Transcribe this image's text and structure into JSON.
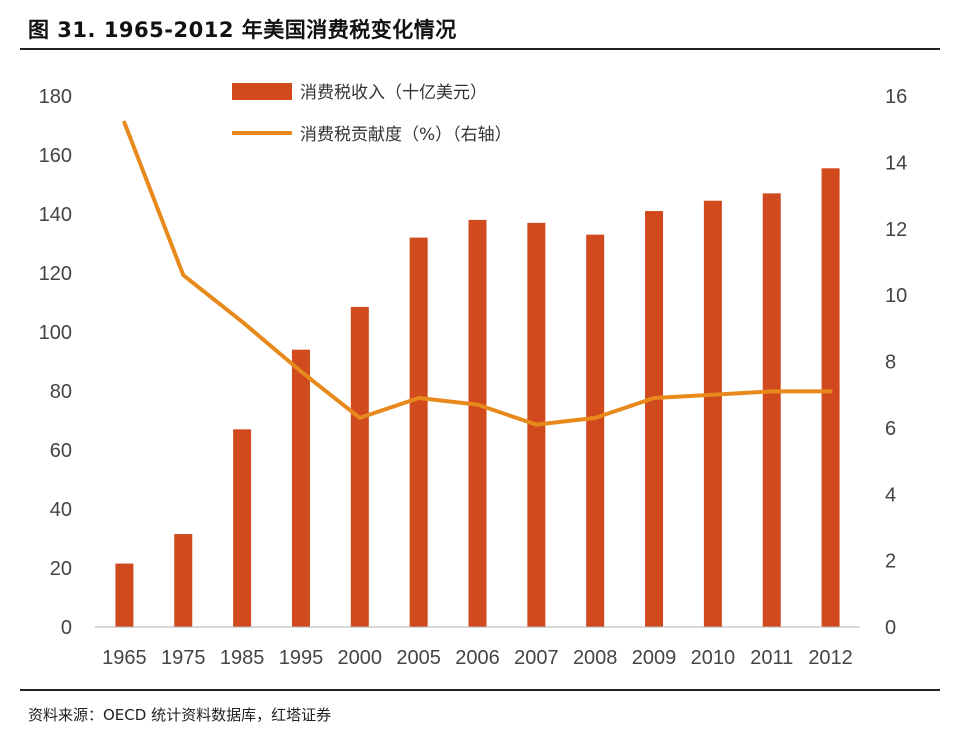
{
  "title": "图 31. 1965-2012 年美国消费税变化情况",
  "source": "资料来源：OECD 统计资料数据库，红塔证券",
  "colors": {
    "bar": "#d04a1e",
    "line": "#e8891c",
    "axis": "#b0b0b0"
  },
  "chart_data": {
    "type": "bar",
    "categories": [
      "1965",
      "1975",
      "1985",
      "1995",
      "2000",
      "2005",
      "2006",
      "2007",
      "2008",
      "2009",
      "2010",
      "2011",
      "2012"
    ],
    "series": [
      {
        "name": "消费税收入（十亿美元）",
        "type": "bar",
        "axis": "left",
        "values": [
          21.5,
          31.5,
          67,
          94,
          108.5,
          132,
          138,
          137,
          133,
          141,
          144.5,
          147,
          155.5
        ]
      },
      {
        "name": "消费税贡献度（%）（右轴）",
        "type": "line",
        "axis": "right",
        "values": [
          15.2,
          10.6,
          9.2,
          7.7,
          6.3,
          6.9,
          6.7,
          6.1,
          6.3,
          6.9,
          7.0,
          7.1,
          7.1
        ]
      }
    ],
    "ylim_left": [
      0,
      180
    ],
    "yticks_left": [
      "0",
      "20",
      "40",
      "60",
      "80",
      "100",
      "120",
      "140",
      "160",
      "180"
    ],
    "ylim_right": [
      0,
      16
    ],
    "yticks_right": [
      "0",
      "2",
      "4",
      "6",
      "8",
      "10",
      "12",
      "14",
      "16"
    ],
    "grid": false,
    "legend_position": "top-center"
  }
}
